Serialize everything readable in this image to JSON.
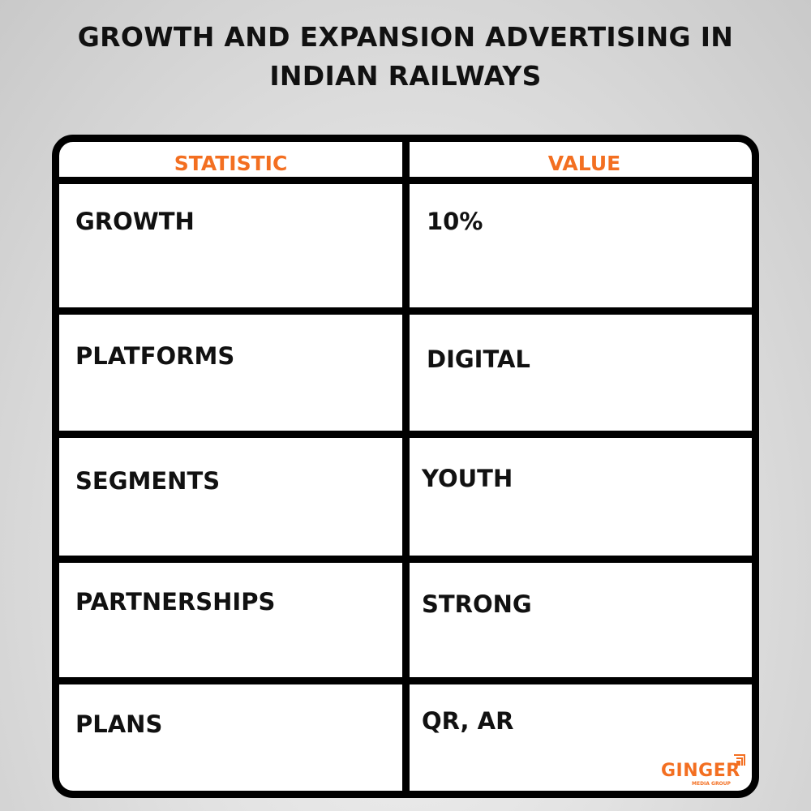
{
  "title_lines": [
    "GROWTH AND EXPANSION ADVERTISING IN",
    "INDIAN RAILWAYS"
  ],
  "table": {
    "headers": [
      "STATISTIC",
      "VALUE"
    ],
    "rows": [
      {
        "statistic": "GROWTH",
        "value": "10%"
      },
      {
        "statistic": "PLATFORMS",
        "value": "DIGITAL"
      },
      {
        "statistic": "SEGMENTS",
        "value": "YOUTH"
      },
      {
        "statistic": "PARTNERSHIPS",
        "value": "STRONG"
      },
      {
        "statistic": "PLANS",
        "value": "QR, AR"
      }
    ]
  },
  "logo": {
    "name": "GINGER",
    "sub": "MEDIA GROUP"
  },
  "colors": {
    "accent": "#f36f21",
    "text": "#111111",
    "border": "#000000"
  }
}
